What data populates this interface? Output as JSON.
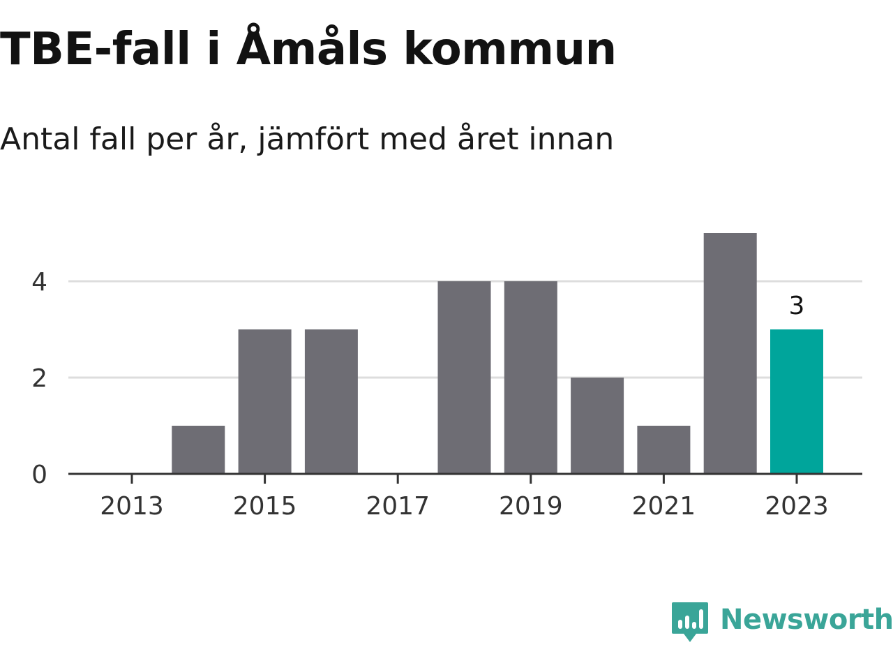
{
  "header": {
    "title": "TBE-fall i Åmåls kommun",
    "subtitle": "Antal fall per år, jämfört med året innan"
  },
  "chart_data": {
    "type": "bar",
    "title": "TBE-fall i Åmåls kommun",
    "subtitle": "Antal fall per år, jämfört med året innan",
    "categories": [
      "2013",
      "2014",
      "2015",
      "2016",
      "2017",
      "2018",
      "2019",
      "2020",
      "2021",
      "2022",
      "2023"
    ],
    "values": [
      0,
      1,
      3,
      3,
      0,
      4,
      4,
      2,
      1,
      5,
      3
    ],
    "x_tick_labels": [
      "2013",
      "2015",
      "2017",
      "2019",
      "2021",
      "2023"
    ],
    "y_ticks": [
      0,
      2,
      4
    ],
    "ylim": [
      0,
      5
    ],
    "grid": true,
    "highlight_category": "2023",
    "highlight_label": "3",
    "xlabel": "",
    "ylabel": "",
    "colors": {
      "bar": "#6e6d74",
      "highlight": "#00a59b",
      "grid": "#dddddd",
      "axis": "#333333",
      "tick_text": "#333333"
    }
  },
  "brand": {
    "name": "Newsworthy",
    "icon": "newsworthy-logo-icon",
    "color": "#3aa598"
  }
}
